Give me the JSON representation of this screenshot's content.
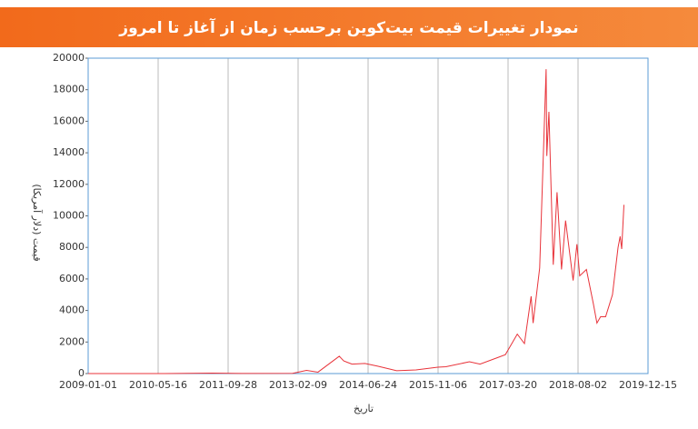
{
  "chart_data": {
    "type": "line",
    "title": "نمودار تغییرات قیمت بیت‌کوین برحسب زمان از آغاز تا امروز",
    "x_label": "تاریخ",
    "y_label": "قیمت (دلار آمریکا)",
    "color": "#e8333a",
    "grid": true,
    "x": [
      "2009-01-01",
      "2010-07-01",
      "2011-06-08",
      "2012-01-01",
      "2013-01-01",
      "2013-04-10",
      "2013-07-01",
      "2013-11-30",
      "2014-01-01",
      "2014-03-01",
      "2014-06-01",
      "2014-09-01",
      "2015-01-14",
      "2015-06-01",
      "2015-11-04",
      "2016-01-01",
      "2016-06-17",
      "2016-09-01",
      "2017-01-01",
      "2017-03-01",
      "2017-05-25",
      "2017-07-15",
      "2017-09-01",
      "2017-09-15",
      "2017-11-01",
      "2017-12-17",
      "2017-12-22",
      "2018-01-06",
      "2018-02-06",
      "2018-03-05",
      "2018-04-06",
      "2018-05-05",
      "2018-06-28",
      "2018-07-25",
      "2018-08-14",
      "2018-10-01",
      "2018-11-20",
      "2018-12-15",
      "2019-01-10",
      "2019-02-15",
      "2019-04-05",
      "2019-05-15",
      "2019-05-30",
      "2019-06-10",
      "2019-06-26"
    ],
    "values": [
      0,
      0,
      30,
      5,
      13,
      200,
      90,
      1100,
      800,
      600,
      640,
      470,
      180,
      230,
      400,
      430,
      750,
      600,
      1000,
      1200,
      2500,
      1900,
      4900,
      3200,
      6700,
      19300,
      13800,
      16600,
      6900,
      11500,
      6600,
      9700,
      5900,
      8200,
      6200,
      6600,
      4400,
      3200,
      3600,
      3600,
      5000,
      8000,
      8700,
      7900,
      10700
    ],
    "xlim": [
      "2009-01-01",
      "2019-12-15"
    ],
    "xticks": [
      "2009-01-01",
      "2010-05-16",
      "2011-09-28",
      "2013-02-09",
      "2014-06-24",
      "2015-11-06",
      "2017-03-20",
      "2018-08-02",
      "2019-12-15"
    ],
    "ylim": [
      0,
      20000
    ],
    "yticks": [
      0,
      2000,
      4000,
      6000,
      8000,
      10000,
      12000,
      14000,
      16000,
      18000,
      20000
    ]
  }
}
